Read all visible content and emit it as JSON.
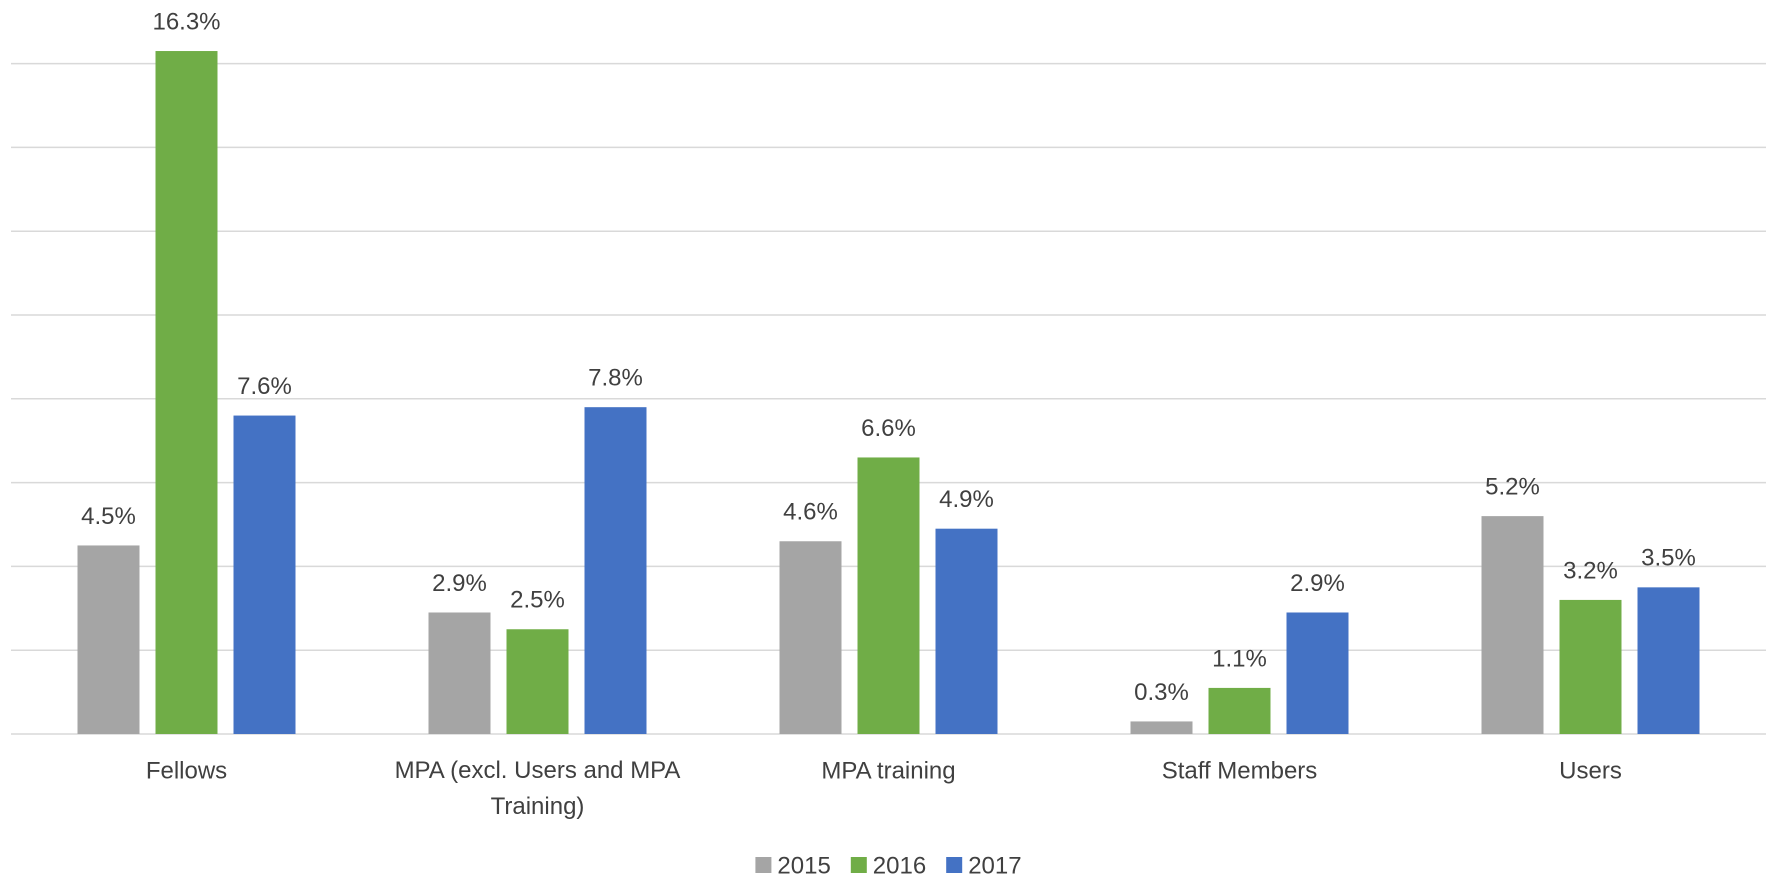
{
  "chart_data": {
    "type": "bar",
    "categories": [
      "Fellows",
      "MPA (excl. Users and MPA Training)",
      "MPA training",
      "Staff Members",
      "Users"
    ],
    "series": [
      {
        "name": "2015",
        "color": "#a5a5a5",
        "values": [
          4.5,
          2.9,
          4.6,
          0.3,
          5.2
        ],
        "value_labels": [
          "4.5%",
          "2.9%",
          "4.6%",
          "0.3%",
          "5.2%"
        ]
      },
      {
        "name": "2016",
        "color": "#70ad47",
        "values": [
          16.3,
          2.5,
          6.6,
          1.1,
          3.2
        ],
        "value_labels": [
          "16.3%",
          "2.5%",
          "6.6%",
          "1.1%",
          "3.2%"
        ]
      },
      {
        "name": "2017",
        "color": "#4472c4",
        "values": [
          7.6,
          7.8,
          4.9,
          2.9,
          3.5
        ],
        "value_labels": [
          "7.6%",
          "7.8%",
          "4.9%",
          "2.9%",
          "3.5%"
        ]
      }
    ],
    "ylim": [
      0,
      18
    ],
    "yticks": [
      0,
      2,
      4,
      6,
      8,
      10,
      12,
      14,
      16
    ],
    "grid": true,
    "legend": "bottom"
  }
}
